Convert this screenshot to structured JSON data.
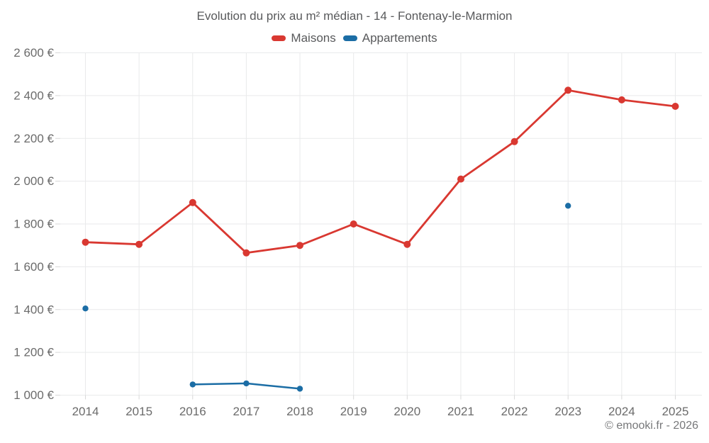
{
  "title": "Evolution du prix au m² médian - 14 - Fontenay-le-Marmion",
  "copyright": "© emooki.fr - 2026",
  "colors": {
    "maisons": "#d93831",
    "appartements": "#1b6da5",
    "grid": "#e9eaeb",
    "tick": "#d8d8d8",
    "axis_text": "#6b6b6b",
    "title_text": "#58595b"
  },
  "chart_data": {
    "type": "line",
    "title": "Evolution du prix au m² médian - 14 - Fontenay-le-Marmion",
    "x": [
      2014,
      2015,
      2016,
      2017,
      2018,
      2019,
      2020,
      2021,
      2022,
      2023,
      2024,
      2025
    ],
    "series": [
      {
        "name": "Maisons",
        "color": "#d93831",
        "values": [
          1715,
          1705,
          1900,
          1665,
          1700,
          1800,
          1705,
          2010,
          2185,
          2425,
          2380,
          2350
        ]
      },
      {
        "name": "Appartements",
        "color": "#1b6da5",
        "values": [
          1405,
          null,
          1050,
          1055,
          1030,
          null,
          null,
          null,
          null,
          1885,
          null,
          null
        ]
      }
    ],
    "ylim": [
      1000,
      2600
    ],
    "ytick_step": 200,
    "ytick_suffix": " €",
    "xlabel": "",
    "ylabel": "",
    "grid": true,
    "legend_position": "top"
  }
}
